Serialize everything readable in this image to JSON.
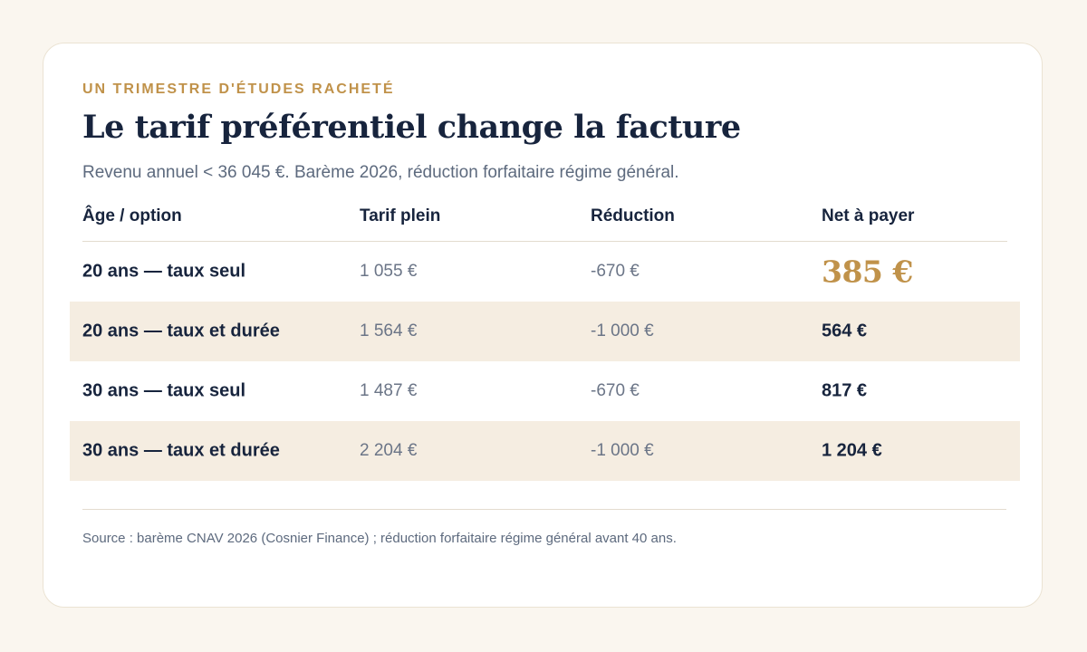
{
  "eyebrow": "UN TRIMESTRE D'ÉTUDES RACHETÉ",
  "title": "Le tarif préférentiel change la facture",
  "subtitle": "Revenu annuel < 36 045 €. Barème 2026, réduction forfaitaire régime général.",
  "chart_data": {
    "type": "table",
    "columns": [
      "Âge / option",
      "Tarif plein",
      "Réduction",
      "Net à payer"
    ],
    "rows": [
      {
        "option": "20 ans — taux seul",
        "tarif_plein": "1 055 €",
        "reduction": "-670 €",
        "net": "385 €",
        "highlight": true
      },
      {
        "option": "20 ans — taux et durée",
        "tarif_plein": "1 564 €",
        "reduction": "-1 000 €",
        "net": "564 €",
        "highlight": false
      },
      {
        "option": "30 ans — taux seul",
        "tarif_plein": "1 487 €",
        "reduction": "-670 €",
        "net": "817 €",
        "highlight": false
      },
      {
        "option": "30 ans — taux et durée",
        "tarif_plein": "2 204 €",
        "reduction": "-1 000 €",
        "net": "1 204 €",
        "highlight": false
      }
    ]
  },
  "source": "Source : barème CNAV 2026 (Cosnier Finance) ; réduction forfaitaire régime général avant 40 ans.",
  "colors": {
    "accent": "#c0924a",
    "text_dark": "#17243d",
    "row_shade": "#f5ede1",
    "background": "#faf6ef"
  }
}
